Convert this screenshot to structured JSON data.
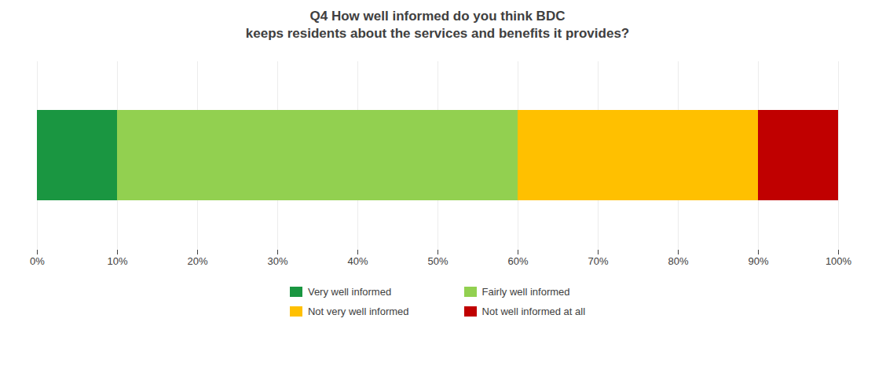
{
  "chart_data": {
    "type": "bar",
    "orientation": "horizontal",
    "stacked": true,
    "title": "Q4 How well informed do you think BDC\nkeeps residents about the services and benefits it provides?",
    "categories": [
      null
    ],
    "series": [
      {
        "name": "Very well informed",
        "color": "#1a9641",
        "values": [
          10
        ]
      },
      {
        "name": "Fairly well informed",
        "color": "#92d050",
        "values": [
          50
        ]
      },
      {
        "name": "Not very well informed",
        "color": "#ffc000",
        "values": [
          30
        ]
      },
      {
        "name": "Not well informed at all",
        "color": "#c00000",
        "values": [
          10
        ]
      }
    ],
    "xlim": [
      0,
      100
    ],
    "xticks": [
      {
        "value": 0,
        "label": "0%"
      },
      {
        "value": 10,
        "label": "10%"
      },
      {
        "value": 20,
        "label": "20%"
      },
      {
        "value": 30,
        "label": "30%"
      },
      {
        "value": 40,
        "label": "40%"
      },
      {
        "value": 50,
        "label": "50%"
      },
      {
        "value": 60,
        "label": "60%"
      },
      {
        "value": 70,
        "label": "70%"
      },
      {
        "value": 80,
        "label": "80%"
      },
      {
        "value": 90,
        "label": "90%"
      },
      {
        "value": 100,
        "label": "100%"
      }
    ],
    "grid": true,
    "legend": "bottom",
    "tick_labels": "x"
  }
}
